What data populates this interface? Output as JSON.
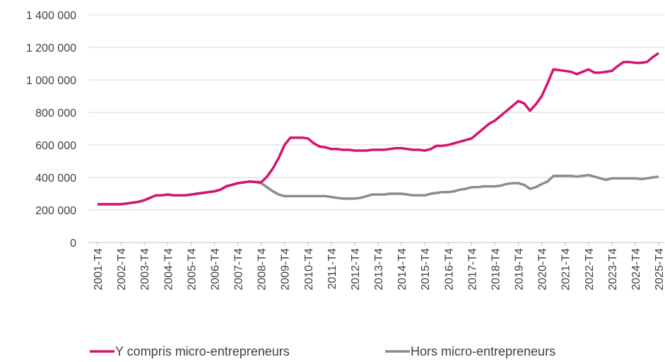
{
  "chart_data": {
    "type": "line",
    "categories": [
      "2001-T4",
      null,
      null,
      null,
      "2002-T4",
      null,
      null,
      null,
      "2003-T4",
      null,
      null,
      null,
      "2004-T4",
      null,
      null,
      null,
      "2005-T4",
      null,
      null,
      null,
      "2006-T4",
      null,
      null,
      null,
      "2007-T4",
      null,
      null,
      null,
      "2008-T4",
      null,
      null,
      null,
      "2009-T4",
      null,
      null,
      null,
      "2010-T4",
      null,
      null,
      null,
      "2011-T4",
      null,
      null,
      null,
      "2012-T4",
      null,
      null,
      null,
      "2013-T4",
      null,
      null,
      null,
      "2014-T4",
      null,
      null,
      null,
      "2015-T4",
      null,
      null,
      null,
      "2016-T4",
      null,
      null,
      null,
      "2017-T4",
      null,
      null,
      null,
      "2018-T4",
      null,
      null,
      null,
      "2019-T4",
      null,
      null,
      null,
      "2020-T4",
      null,
      null,
      null,
      "2021-T4",
      null,
      null,
      null,
      "2022-T4",
      null,
      null,
      null,
      "2023-T4",
      null,
      null,
      null,
      "2024-T4",
      null,
      null,
      null,
      "2025-T4"
    ],
    "series": [
      {
        "name": "Y compris micro-entrepreneurs",
        "color": "#d4136f",
        "values": [
          235000,
          235000,
          235000,
          235000,
          235000,
          240000,
          245000,
          250000,
          260000,
          275000,
          290000,
          290000,
          295000,
          290000,
          290000,
          290000,
          295000,
          300000,
          305000,
          310000,
          315000,
          325000,
          345000,
          355000,
          365000,
          370000,
          375000,
          372000,
          370000,
          405000,
          455000,
          520000,
          600000,
          645000,
          645000,
          645000,
          640000,
          610000,
          590000,
          585000,
          575000,
          575000,
          570000,
          570000,
          565000,
          565000,
          565000,
          570000,
          570000,
          570000,
          575000,
          580000,
          580000,
          575000,
          570000,
          570000,
          565000,
          575000,
          595000,
          595000,
          600000,
          610000,
          620000,
          630000,
          640000,
          670000,
          700000,
          730000,
          750000,
          780000,
          810000,
          840000,
          870000,
          855000,
          810000,
          850000,
          900000,
          980000,
          1065000,
          1060000,
          1055000,
          1050000,
          1035000,
          1050000,
          1065000,
          1045000,
          1045000,
          1050000,
          1055000,
          1085000,
          1110000,
          1110000,
          1105000,
          1105000,
          1110000,
          1140000,
          1165000
        ]
      },
      {
        "name": "Hors micro-entrepreneurs",
        "color": "#8c8c8c",
        "values": [
          235000,
          235000,
          235000,
          235000,
          235000,
          240000,
          245000,
          250000,
          260000,
          275000,
          290000,
          290000,
          295000,
          290000,
          290000,
          290000,
          295000,
          300000,
          305000,
          310000,
          315000,
          325000,
          345000,
          355000,
          365000,
          370000,
          375000,
          372000,
          365000,
          340000,
          315000,
          295000,
          285000,
          285000,
          285000,
          285000,
          285000,
          285000,
          285000,
          285000,
          280000,
          275000,
          270000,
          270000,
          270000,
          275000,
          285000,
          295000,
          295000,
          295000,
          300000,
          300000,
          300000,
          295000,
          290000,
          290000,
          290000,
          300000,
          305000,
          310000,
          310000,
          315000,
          325000,
          330000,
          340000,
          340000,
          345000,
          345000,
          345000,
          350000,
          360000,
          365000,
          365000,
          355000,
          330000,
          340000,
          360000,
          375000,
          410000,
          410000,
          410000,
          410000,
          405000,
          410000,
          415000,
          405000,
          395000,
          385000,
          395000,
          395000,
          395000,
          395000,
          395000,
          390000,
          395000,
          400000,
          405000
        ]
      }
    ],
    "ylim": [
      0,
      1400000
    ],
    "yticks": [
      0,
      {
        "value": 200000,
        "label": "200 000"
      },
      {
        "value": 400000,
        "label": "400 000"
      },
      {
        "value": 600000,
        "label": "600 000"
      },
      {
        "value": 800000,
        "label": "800 000"
      },
      {
        "value": 1000000,
        "label": "1 000 000"
      },
      {
        "value": 1200000,
        "label": "1 200 000"
      },
      {
        "value": 1400000,
        "label": "1 400 000"
      }
    ],
    "grid": true
  }
}
